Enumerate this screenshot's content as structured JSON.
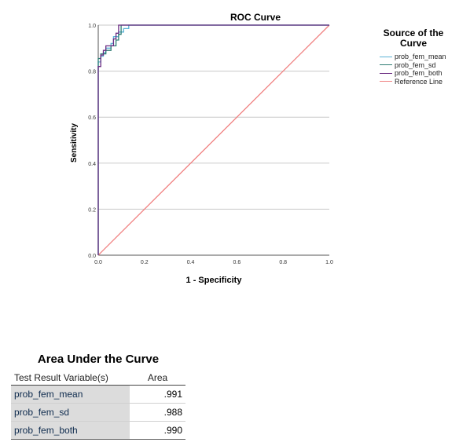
{
  "chart_data": {
    "type": "line",
    "title": "ROC Curve",
    "xlabel": "1 - Specificity",
    "ylabel": "Sensitivity",
    "xlim": [
      0,
      1
    ],
    "ylim": [
      0,
      1
    ],
    "x_ticks": [
      "0.0",
      "0.2",
      "0.4",
      "0.6",
      "0.8",
      "1.0"
    ],
    "y_ticks": [
      "0.0",
      "0.2",
      "0.4",
      "0.6",
      "0.8",
      "1.0"
    ],
    "grid": "horizontal",
    "legend_title": "Source of the Curve",
    "legend_position": "right",
    "series": [
      {
        "name": "prob_fem_mean",
        "color": "#5bb3d6",
        "x": [
          0.0,
          0.0,
          0.0,
          0.011,
          0.011,
          0.022,
          0.022,
          0.033,
          0.033,
          0.055,
          0.055,
          0.066,
          0.066,
          0.088,
          0.088,
          0.11,
          0.11,
          0.132,
          0.132,
          1.0
        ],
        "y": [
          0.0,
          0.84,
          0.84,
          0.84,
          0.865,
          0.865,
          0.88,
          0.88,
          0.9,
          0.9,
          0.92,
          0.92,
          0.95,
          0.95,
          0.97,
          0.97,
          0.985,
          0.985,
          1.0,
          1.0
        ]
      },
      {
        "name": "prob_fem_sd",
        "color": "#2f7d73",
        "x": [
          0.0,
          0.0,
          0.011,
          0.011,
          0.033,
          0.033,
          0.055,
          0.055,
          0.077,
          0.077,
          0.088,
          0.088,
          0.099,
          0.099,
          1.0
        ],
        "y": [
          0.0,
          0.855,
          0.855,
          0.875,
          0.875,
          0.89,
          0.89,
          0.91,
          0.91,
          0.935,
          0.935,
          0.96,
          0.96,
          1.0,
          1.0
        ]
      },
      {
        "name": "prob_fem_both",
        "color": "#6a2c82",
        "x": [
          0.0,
          0.0,
          0.011,
          0.011,
          0.022,
          0.022,
          0.033,
          0.033,
          0.066,
          0.066,
          0.077,
          0.077,
          0.088,
          0.088,
          1.0
        ],
        "y": [
          0.0,
          0.82,
          0.82,
          0.87,
          0.87,
          0.89,
          0.89,
          0.91,
          0.91,
          0.94,
          0.94,
          0.965,
          0.965,
          1.0,
          1.0
        ]
      },
      {
        "name": "Reference Line",
        "color": "#f08080",
        "x": [
          0.0,
          1.0
        ],
        "y": [
          0.0,
          1.0
        ]
      }
    ]
  },
  "auc_table": {
    "title": "Area Under the Curve",
    "headers": [
      "Test Result Variable(s)",
      "Area"
    ],
    "rows": [
      {
        "variable": "prob_fem_mean",
        "area": ".991"
      },
      {
        "variable": "prob_fem_sd",
        "area": ".988"
      },
      {
        "variable": "prob_fem_both",
        "area": ".990"
      }
    ]
  }
}
